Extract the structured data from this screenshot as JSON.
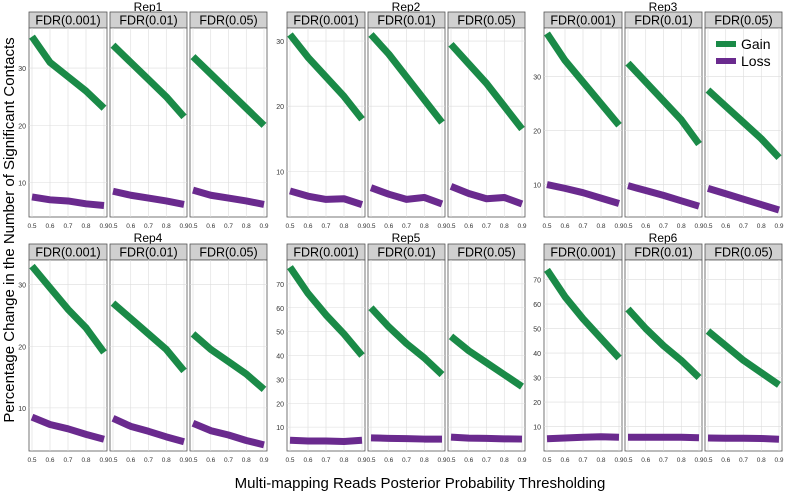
{
  "figure": {
    "ylabel": "Percentage Change in the Number of Significant Contacts",
    "xlabel": "Multi-mapping Reads Posterior Probability Thresholding"
  },
  "legend": {
    "placement": "top-right",
    "items": [
      {
        "label": "Gain",
        "color": "#1a8a47"
      },
      {
        "label": "Loss",
        "color": "#6a2a8e"
      }
    ]
  },
  "colors": {
    "gain": "#1a8a47",
    "loss": "#6a2a8e",
    "panel_bg": "#ffffff",
    "grid": "#dcdcdc",
    "strip_bg": "#d0d0d0"
  },
  "chart_data": {
    "type": "line",
    "x_ticks": [
      "0.5",
      "0.6",
      "0.7",
      "0.8",
      "0.9"
    ],
    "x": [
      0.5,
      0.6,
      0.7,
      0.8,
      0.9
    ],
    "xlim": [
      0.5,
      0.9
    ],
    "grid": true,
    "facets": [
      "FDR(0.001)",
      "FDR(0.01)",
      "FDR(0.05)"
    ],
    "replicates": [
      {
        "title": "Rep1",
        "ylim": [
          4,
          37
        ],
        "y_ticks": [
          10,
          20,
          30
        ],
        "panels": [
          {
            "facet": "FDR(0.001)",
            "gain": [
              35.5,
              31.0,
              28.5,
              26.0,
              23.0
            ],
            "loss": [
              7.5,
              7.0,
              6.8,
              6.3,
              6.0
            ]
          },
          {
            "facet": "FDR(0.01)",
            "gain": [
              34.0,
              31.0,
              28.0,
              25.0,
              21.5
            ],
            "loss": [
              8.5,
              7.8,
              7.3,
              6.8,
              6.2
            ]
          },
          {
            "facet": "FDR(0.05)",
            "gain": [
              32.0,
              29.0,
              26.0,
              23.0,
              20.0
            ],
            "loss": [
              8.7,
              7.8,
              7.3,
              6.8,
              6.2
            ]
          }
        ]
      },
      {
        "title": "Rep2",
        "ylim": [
          3,
          32
        ],
        "y_ticks": [
          10,
          20,
          30
        ],
        "panels": [
          {
            "facet": "FDR(0.001)",
            "gain": [
              31.0,
              27.5,
              24.5,
              21.5,
              18.0
            ],
            "loss": [
              7.0,
              6.2,
              5.7,
              5.8,
              4.9
            ]
          },
          {
            "facet": "FDR(0.01)",
            "gain": [
              31.0,
              28.0,
              24.5,
              21.0,
              17.5
            ],
            "loss": [
              7.5,
              6.5,
              5.7,
              6.0,
              5.0
            ]
          },
          {
            "facet": "FDR(0.05)",
            "gain": [
              29.5,
              26.5,
              23.5,
              20.0,
              16.5
            ],
            "loss": [
              7.7,
              6.6,
              5.8,
              6.0,
              5.0
            ]
          }
        ]
      },
      {
        "title": "Rep3",
        "ylim": [
          4,
          39
        ],
        "y_ticks": [
          10,
          20,
          30
        ],
        "panels": [
          {
            "facet": "FDR(0.001)",
            "gain": [
              38.0,
              33.0,
              29.0,
              25.0,
              21.0
            ],
            "loss": [
              10.0,
              9.3,
              8.5,
              7.5,
              6.5
            ]
          },
          {
            "facet": "FDR(0.01)",
            "gain": [
              32.5,
              29.0,
              25.5,
              22.0,
              17.5
            ],
            "loss": [
              9.8,
              8.9,
              8.0,
              7.0,
              6.0
            ]
          },
          {
            "facet": "FDR(0.05)",
            "gain": [
              27.5,
              24.5,
              21.5,
              18.5,
              15.0
            ],
            "loss": [
              9.3,
              8.3,
              7.3,
              6.3,
              5.3
            ]
          }
        ]
      },
      {
        "title": "Rep4",
        "ylim": [
          3,
          34
        ],
        "y_ticks": [
          10,
          20,
          30
        ],
        "panels": [
          {
            "facet": "FDR(0.001)",
            "gain": [
              33.0,
              29.5,
              26.0,
              23.0,
              19.0
            ],
            "loss": [
              8.5,
              7.3,
              6.6,
              5.7,
              4.9
            ]
          },
          {
            "facet": "FDR(0.01)",
            "gain": [
              27.0,
              24.5,
              22.0,
              19.5,
              16.0
            ],
            "loss": [
              8.3,
              7.0,
              6.2,
              5.3,
              4.5
            ]
          },
          {
            "facet": "FDR(0.05)",
            "gain": [
              22.0,
              19.5,
              17.5,
              15.5,
              13.0
            ],
            "loss": [
              7.5,
              6.3,
              5.6,
              4.7,
              4.0
            ]
          }
        ]
      },
      {
        "title": "Rep5",
        "ylim": [
          0,
          80
        ],
        "y_ticks": [
          10,
          20,
          30,
          40,
          50,
          60,
          70
        ],
        "panels": [
          {
            "facet": "FDR(0.001)",
            "gain": [
              77.0,
              66.0,
              57.0,
              49.0,
              40.0
            ],
            "loss": [
              4.5,
              4.2,
              4.2,
              4.0,
              4.5
            ]
          },
          {
            "facet": "FDR(0.01)",
            "gain": [
              60.0,
              52.0,
              45.0,
              39.0,
              32.0
            ],
            "loss": [
              5.5,
              5.3,
              5.2,
              5.0,
              5.0
            ]
          },
          {
            "facet": "FDR(0.05)",
            "gain": [
              48.0,
              42.0,
              37.0,
              32.0,
              27.0
            ],
            "loss": [
              5.8,
              5.4,
              5.3,
              5.1,
              5.0
            ]
          }
        ]
      },
      {
        "title": "Rep6",
        "ylim": [
          0,
          78
        ],
        "y_ticks": [
          10,
          20,
          30,
          40,
          50,
          60,
          70
        ],
        "panels": [
          {
            "facet": "FDR(0.001)",
            "gain": [
              74.0,
              63.0,
              54.0,
              46.0,
              38.0
            ],
            "loss": [
              5.0,
              5.3,
              5.6,
              5.8,
              5.6
            ]
          },
          {
            "facet": "FDR(0.01)",
            "gain": [
              58.0,
              50.0,
              43.0,
              37.0,
              30.0
            ],
            "loss": [
              5.6,
              5.6,
              5.6,
              5.6,
              5.4
            ]
          },
          {
            "facet": "FDR(0.05)",
            "gain": [
              49.0,
              43.0,
              37.0,
              32.0,
              27.0
            ],
            "loss": [
              5.3,
              5.2,
              5.2,
              5.1,
              4.8
            ]
          }
        ]
      }
    ]
  }
}
